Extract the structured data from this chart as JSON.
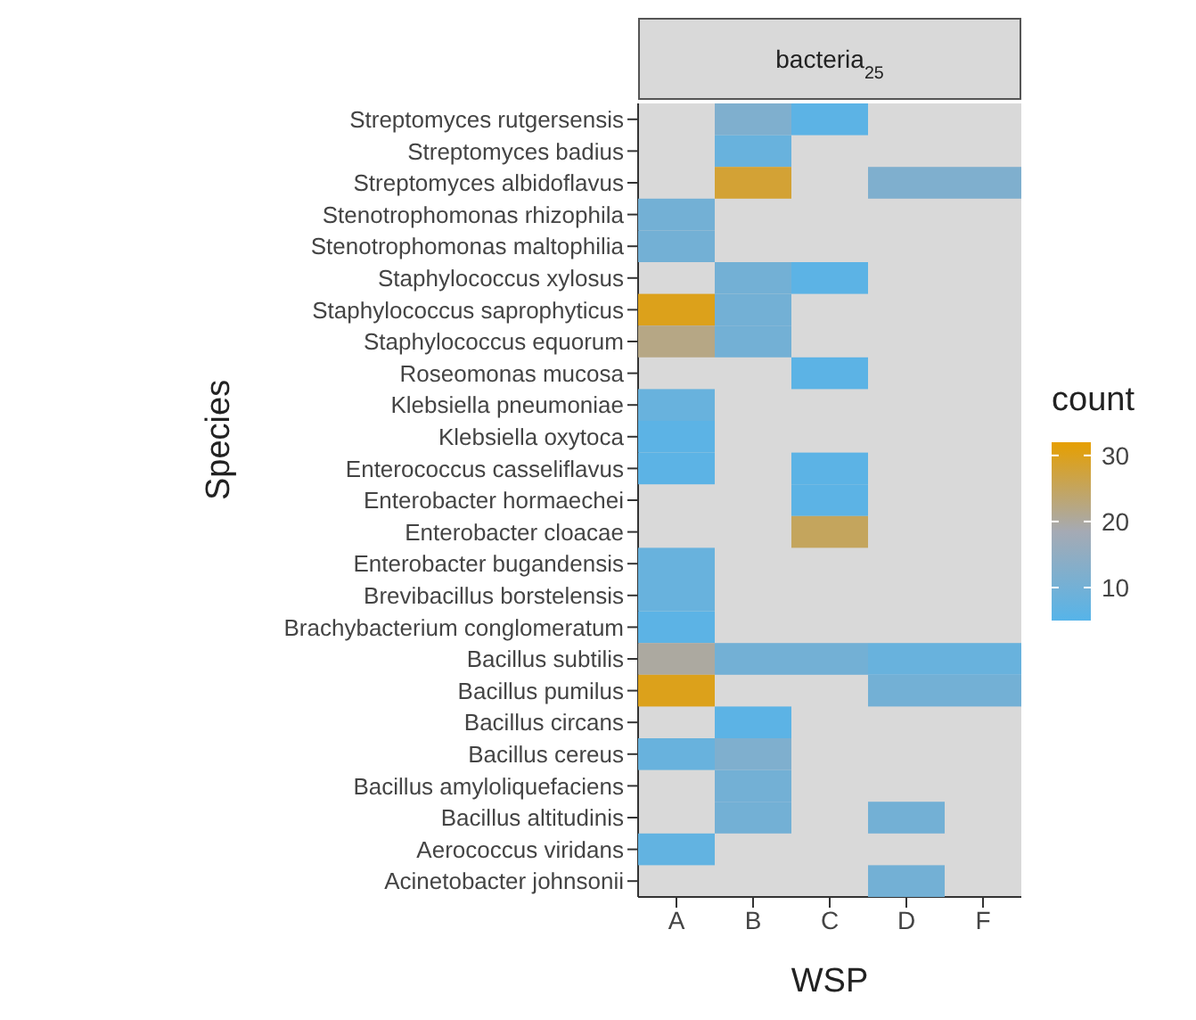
{
  "chart_data": {
    "type": "heatmap",
    "title": "bacteria$_{25}$",
    "xlabel": "WSP",
    "ylabel": "Species",
    "clabel": "count",
    "categories": [
      "A",
      "B",
      "C",
      "D",
      "F"
    ],
    "y_categories": [
      "Streptomyces rutgersensis",
      "Streptomyces badius",
      "Streptomyces albidoflavus",
      "Stenotrophomonas rhizophila",
      "Stenotrophomonas maltophilia",
      "Staphylococcus xylosus",
      "Staphylococcus saprophyticus",
      "Staphylococcus equorum",
      "Roseomonas mucosa",
      "Klebsiella pneumoniae",
      "Klebsiella oxytoca",
      "Enterococcus casseliflavus",
      "Enterobacter hormaechei",
      "Enterobacter cloacae",
      "Enterobacter bugandensis",
      "Brevibacillus borstelensis",
      "Brachybacterium conglomeratum",
      "Bacillus subtilis",
      "Bacillus pumilus",
      "Bacillus circans",
      "Bacillus cereus",
      "Bacillus amyloliquefaciens",
      "Bacillus altitudinis",
      "Aerococcus viridans",
      "Acinetobacter johnsonii"
    ],
    "cells": [
      [
        null,
        12,
        6,
        null,
        null
      ],
      [
        null,
        8,
        null,
        null,
        null
      ],
      [
        null,
        28,
        null,
        12,
        12
      ],
      [
        10,
        null,
        null,
        null,
        null
      ],
      [
        10,
        null,
        null,
        null,
        null
      ],
      [
        null,
        10,
        6,
        null,
        null
      ],
      [
        30,
        10,
        null,
        null,
        null
      ],
      [
        22,
        10,
        null,
        null,
        null
      ],
      [
        null,
        null,
        6,
        null,
        null
      ],
      [
        8,
        null,
        null,
        null,
        null
      ],
      [
        6,
        null,
        null,
        null,
        null
      ],
      [
        6,
        null,
        6,
        null,
        null
      ],
      [
        null,
        null,
        6,
        null,
        null
      ],
      [
        null,
        null,
        25,
        null,
        null
      ],
      [
        8,
        null,
        null,
        null,
        null
      ],
      [
        8,
        null,
        null,
        null,
        null
      ],
      [
        6,
        null,
        null,
        null,
        null
      ],
      [
        20,
        10,
        10,
        8,
        8
      ],
      [
        30,
        null,
        null,
        10,
        10
      ],
      [
        null,
        6,
        null,
        null,
        null
      ],
      [
        8,
        12,
        null,
        null,
        null
      ],
      [
        null,
        10,
        null,
        null,
        null
      ],
      [
        null,
        10,
        null,
        10,
        null
      ],
      [
        7,
        null,
        null,
        null,
        null
      ],
      [
        null,
        null,
        null,
        10,
        null
      ]
    ],
    "clim": [
      5,
      32
    ],
    "cticks": [
      10,
      20,
      30
    ]
  }
}
